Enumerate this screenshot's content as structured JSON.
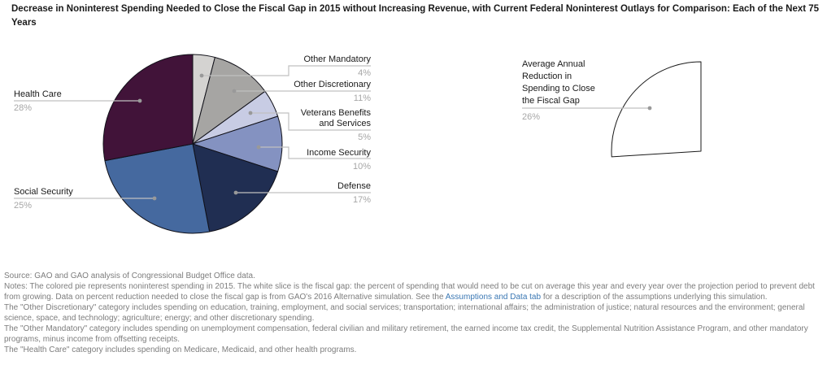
{
  "title": "Decrease in Noninterest Spending Needed to Close the Fiscal Gap in 2015 without Increasing Revenue, with Current Federal Noninterest Outlays for Comparison: Each of the Next 75 Years",
  "chart_data": {
    "type": "pie",
    "title": "Decrease in Noninterest Spending Needed to Close the Fiscal Gap in 2015 without Increasing Revenue, with Current Federal Noninterest Outlays for Comparison: Each of the Next 75 Years",
    "units": "percent of noninterest spending in 2015",
    "start": "12 o'clock, clockwise",
    "legend_position": "callout labels with leader lines",
    "slices": [
      {
        "label": "Other Mandatory",
        "value": 4,
        "color": "#d4d3d1"
      },
      {
        "label": "Other Discretionary",
        "value": 11,
        "color": "#a6a5a3"
      },
      {
        "label": "Veterans Benefits and Services",
        "value": 5,
        "color": "#c8cce4"
      },
      {
        "label": "Income Security",
        "value": 10,
        "color": "#8492c1"
      },
      {
        "label": "Defense",
        "value": 17,
        "color": "#202e52"
      },
      {
        "label": "Social Security",
        "value": 25,
        "color": "#45699f"
      },
      {
        "label": "Health Care",
        "value": 28,
        "color": "#411339"
      }
    ],
    "fiscal_gap_wedge": {
      "label": "Average Annual Reduction in Spending to Close the Fiscal Gap",
      "value": 26,
      "color": "#ffffff"
    }
  },
  "labels": {
    "health_care": {
      "name": "Health Care",
      "pct": "28%"
    },
    "social_security": {
      "name": "Social Security",
      "pct": "25%"
    },
    "other_mandatory": {
      "name": "Other Mandatory",
      "pct": "4%"
    },
    "other_discretionary": {
      "name": "Other Discretionary",
      "pct": "11%"
    },
    "veterans": {
      "name": "Veterans Benefits\nand Services",
      "pct": "5%"
    },
    "income_security": {
      "name": "Income Security",
      "pct": "10%"
    },
    "defense": {
      "name": "Defense",
      "pct": "17%"
    },
    "fiscal_gap": {
      "name": "Average Annual\nReduction in\nSpending to Close\nthe Fiscal Gap",
      "pct": "26%"
    }
  },
  "notes": {
    "source": "Source: GAO and GAO analysis of Congressional Budget Office data.",
    "note1_pre": "Notes: The colored pie represents noninterest spending in 2015. The white slice is the fiscal gap: the percent of spending that would need to be cut on average this year and every year over the projection period to prevent debt from growing. Data on percent reduction needed to close the fiscal gap is from GAO's 2016 Alternative simulation. See the ",
    "note1_link": "Assumptions and Data tab",
    "note1_post": " for a description of the assumptions underlying this simulation.",
    "note2": "The \"Other Discretionary\" category includes spending on education, training, employment, and social services; transportation; international affairs; the administration of justice; natural resources and the environment; general science, space, and technology; agriculture; energy; and other discretionary spending.",
    "note3": "The \"Other Mandatory\" category includes spending on unemployment compensation, federal civilian and military retirement, the earned income tax credit, the Supplemental Nutrition Assistance Program, and other mandatory programs, minus income from offsetting receipts.",
    "note4": "The \"Health Care\" category includes spending on Medicare, Medicaid, and other health programs."
  },
  "colors": {
    "title_text": "#1a1a1a",
    "label_text": "#1a1a1a",
    "pct_text": "#a6a6a6",
    "notes_text": "#7d7d7d",
    "link": "#3b78b4",
    "leader_line": "#c0c0c0",
    "leader_dot": "#999999",
    "slice_stroke": "#101018",
    "wedge_stroke": "#1a1a1a"
  }
}
